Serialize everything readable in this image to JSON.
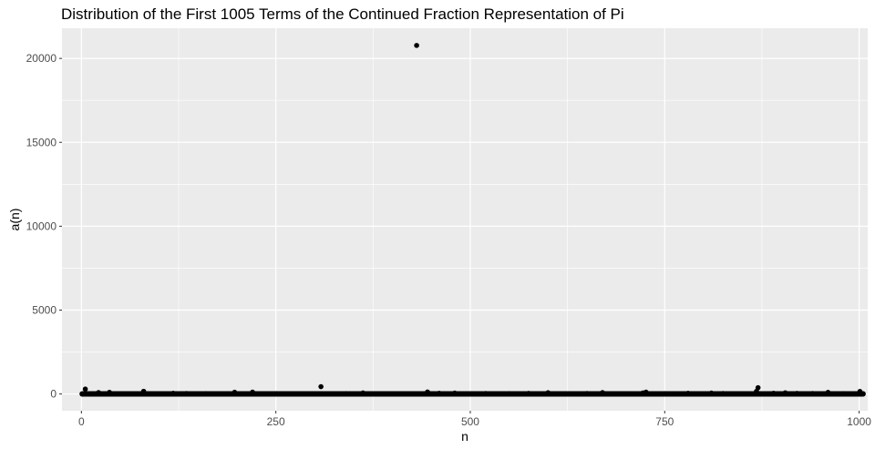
{
  "chart_data": {
    "type": "scatter",
    "title": "Distribution of the First 1005 Terms of the Continued Fraction Representation of Pi",
    "xlabel": "n",
    "ylabel": "a(n)",
    "xlim": [
      -25,
      1011
    ],
    "ylim": [
      -1000,
      21800
    ],
    "xticks": [
      0,
      250,
      500,
      750,
      1000
    ],
    "yticks": [
      0,
      5000,
      10000,
      15000,
      20000
    ],
    "grid": true,
    "legend": "none",
    "colors": {
      "panel": "#ebebeb",
      "grid": "#ffffff",
      "point": "#000000"
    },
    "points": [
      {
        "x": 1,
        "y": 3
      },
      {
        "x": 2,
        "y": 7
      },
      {
        "x": 3,
        "y": 15
      },
      {
        "x": 4,
        "y": 1
      },
      {
        "x": 5,
        "y": 292
      },
      {
        "x": 6,
        "y": 1
      },
      {
        "x": 7,
        "y": 1
      },
      {
        "x": 8,
        "y": 1
      },
      {
        "x": 9,
        "y": 2
      },
      {
        "x": 10,
        "y": 1
      },
      {
        "x": 11,
        "y": 3
      },
      {
        "x": 12,
        "y": 1
      },
      {
        "x": 13,
        "y": 14
      },
      {
        "x": 14,
        "y": 2
      },
      {
        "x": 15,
        "y": 1
      },
      {
        "x": 16,
        "y": 1
      },
      {
        "x": 17,
        "y": 2
      },
      {
        "x": 18,
        "y": 2
      },
      {
        "x": 19,
        "y": 2
      },
      {
        "x": 20,
        "y": 2
      },
      {
        "x": 22,
        "y": 84
      },
      {
        "x": 36,
        "y": 99
      },
      {
        "x": 55,
        "y": 12
      },
      {
        "x": 80,
        "y": 161
      },
      {
        "x": 118,
        "y": 45
      },
      {
        "x": 135,
        "y": 31
      },
      {
        "x": 160,
        "y": 22
      },
      {
        "x": 197,
        "y": 100
      },
      {
        "x": 220,
        "y": 107
      },
      {
        "x": 250,
        "y": 20
      },
      {
        "x": 280,
        "y": 15
      },
      {
        "x": 308,
        "y": 436
      },
      {
        "x": 340,
        "y": 25
      },
      {
        "x": 362,
        "y": 60
      },
      {
        "x": 400,
        "y": 10
      },
      {
        "x": 431,
        "y": 20776
      },
      {
        "x": 445,
        "y": 120
      },
      {
        "x": 460,
        "y": 40
      },
      {
        "x": 480,
        "y": 55
      },
      {
        "x": 500,
        "y": 18
      },
      {
        "x": 520,
        "y": 30
      },
      {
        "x": 550,
        "y": 20
      },
      {
        "x": 575,
        "y": 35
      },
      {
        "x": 600,
        "y": 75
      },
      {
        "x": 620,
        "y": 12
      },
      {
        "x": 650,
        "y": 28
      },
      {
        "x": 670,
        "y": 80
      },
      {
        "x": 700,
        "y": 14
      },
      {
        "x": 722,
        "y": 65
      },
      {
        "x": 726,
        "y": 110
      },
      {
        "x": 750,
        "y": 22
      },
      {
        "x": 780,
        "y": 40
      },
      {
        "x": 810,
        "y": 55
      },
      {
        "x": 825,
        "y": 30
      },
      {
        "x": 850,
        "y": 18
      },
      {
        "x": 868,
        "y": 161
      },
      {
        "x": 870,
        "y": 375
      },
      {
        "x": 890,
        "y": 45
      },
      {
        "x": 905,
        "y": 70
      },
      {
        "x": 920,
        "y": 38
      },
      {
        "x": 940,
        "y": 26
      },
      {
        "x": 960,
        "y": 95
      },
      {
        "x": 980,
        "y": 20
      },
      {
        "x": 1001,
        "y": 148
      },
      {
        "x": 1003,
        "y": 35
      },
      {
        "x": 1005,
        "y": 12
      }
    ],
    "baseline_band": {
      "x_from": 1,
      "x_to": 1005,
      "y": 3
    }
  }
}
